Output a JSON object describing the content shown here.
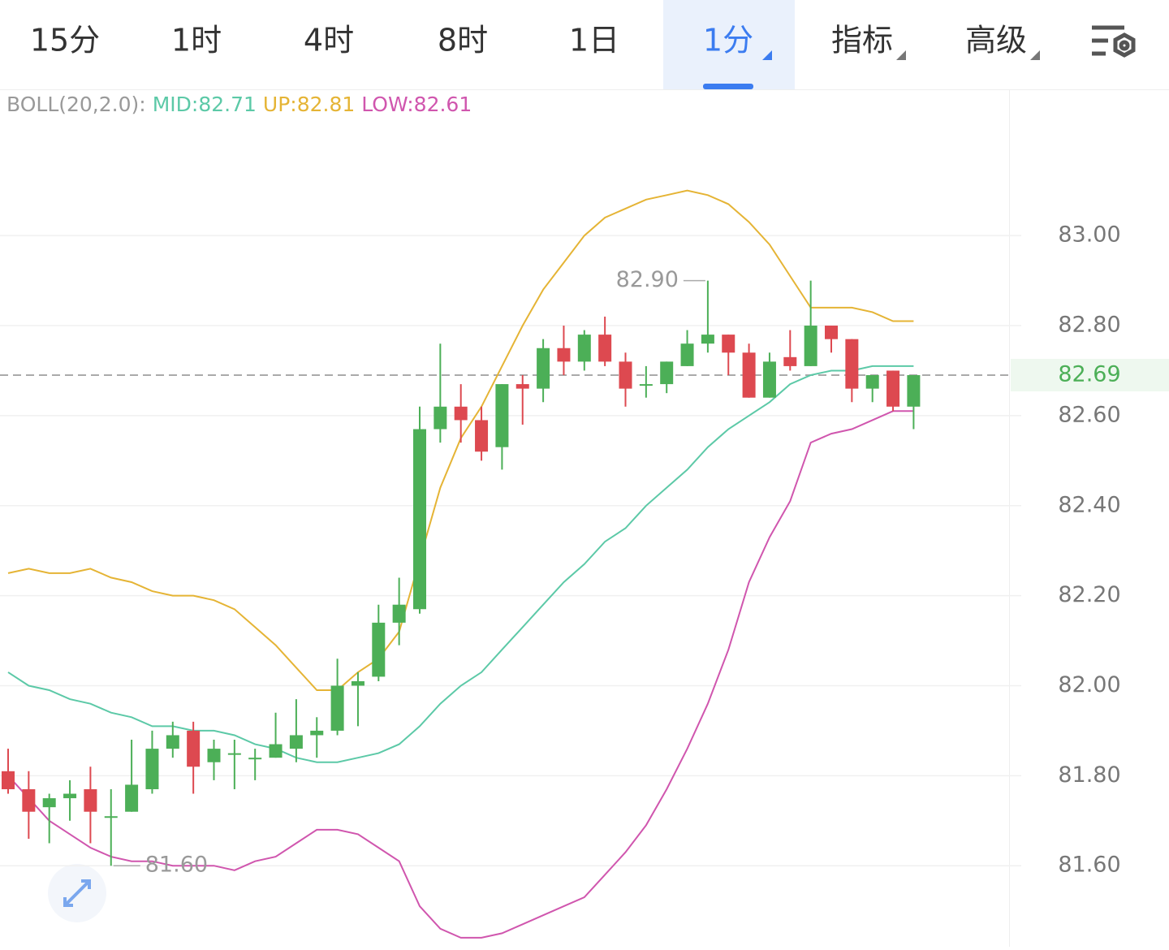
{
  "toolbar": {
    "tabs": [
      {
        "label": "15分",
        "active": false,
        "dropdown": false
      },
      {
        "label": "1时",
        "active": false,
        "dropdown": false
      },
      {
        "label": "4时",
        "active": false,
        "dropdown": false
      },
      {
        "label": "8时",
        "active": false,
        "dropdown": false
      },
      {
        "label": "1日",
        "active": false,
        "dropdown": false
      },
      {
        "label": "1分",
        "active": true,
        "dropdown": true
      },
      {
        "label": "指标",
        "active": false,
        "dropdown": true
      },
      {
        "label": "高级",
        "active": false,
        "dropdown": true
      }
    ]
  },
  "chart_data": {
    "type": "candlestick",
    "indicator": "BOLL(20,2.0):",
    "up_color": "#4caf57",
    "down_color": "#dd4950",
    "open": [
      81.81,
      81.77,
      81.73,
      81.75,
      81.77,
      81.71,
      81.72,
      81.77,
      81.86,
      81.9,
      81.83,
      81.85,
      81.84,
      81.84,
      81.86,
      81.89,
      81.9,
      82.0,
      82.02,
      82.14,
      82.17,
      82.57,
      82.62,
      82.59,
      82.53,
      82.67,
      82.66,
      82.75,
      82.72,
      82.78,
      82.72,
      82.67,
      82.67,
      82.71,
      82.76,
      82.78,
      82.74,
      82.64,
      82.73,
      82.71,
      82.8,
      82.77,
      82.66,
      82.7,
      82.62
    ],
    "high": [
      81.86,
      81.81,
      81.76,
      81.79,
      81.82,
      81.77,
      81.88,
      81.9,
      81.92,
      81.92,
      81.88,
      81.88,
      81.86,
      81.94,
      81.97,
      81.93,
      82.06,
      82.03,
      82.18,
      82.24,
      82.62,
      82.76,
      82.67,
      82.62,
      82.67,
      82.69,
      82.77,
      82.8,
      82.79,
      82.82,
      82.74,
      82.71,
      82.72,
      82.79,
      82.9,
      82.78,
      82.76,
      82.74,
      82.79,
      82.9,
      82.8,
      82.77,
      82.69,
      82.7,
      82.69
    ],
    "low": [
      81.76,
      81.66,
      81.65,
      81.7,
      81.65,
      81.6,
      81.72,
      81.76,
      81.84,
      81.76,
      81.79,
      81.77,
      81.79,
      81.84,
      81.83,
      81.84,
      81.89,
      81.91,
      82.01,
      82.09,
      82.16,
      82.54,
      82.54,
      82.5,
      82.48,
      82.58,
      82.63,
      82.69,
      82.7,
      82.71,
      82.62,
      82.64,
      82.65,
      82.71,
      82.74,
      82.69,
      82.64,
      82.64,
      82.7,
      82.71,
      82.74,
      82.63,
      82.63,
      82.61,
      82.57
    ],
    "close": [
      81.77,
      81.72,
      81.75,
      81.76,
      81.72,
      81.71,
      81.78,
      81.86,
      81.89,
      81.82,
      81.86,
      81.85,
      81.84,
      81.87,
      81.89,
      81.9,
      82.0,
      82.01,
      82.14,
      82.18,
      82.57,
      82.62,
      82.59,
      82.52,
      82.67,
      82.66,
      82.75,
      82.72,
      82.78,
      82.72,
      82.66,
      82.67,
      82.72,
      82.76,
      82.78,
      82.74,
      82.64,
      82.72,
      82.71,
      82.8,
      82.77,
      82.66,
      82.69,
      82.62,
      82.69
    ],
    "series": [
      {
        "name": "MID:82.71",
        "color": "#5cc9a7",
        "values": [
          82.03,
          82.0,
          81.99,
          81.97,
          81.96,
          81.94,
          81.93,
          81.91,
          81.91,
          81.9,
          81.9,
          81.89,
          81.87,
          81.86,
          81.84,
          81.83,
          81.83,
          81.84,
          81.85,
          81.87,
          81.91,
          81.96,
          82.0,
          82.03,
          82.08,
          82.13,
          82.18,
          82.23,
          82.27,
          82.32,
          82.35,
          82.4,
          82.44,
          82.48,
          82.53,
          82.57,
          82.6,
          82.63,
          82.67,
          82.69,
          82.7,
          82.7,
          82.71,
          82.71,
          82.71
        ]
      },
      {
        "name": "UP:82.81",
        "color": "#e5b435",
        "values": [
          82.25,
          82.26,
          82.25,
          82.25,
          82.26,
          82.24,
          82.23,
          82.21,
          82.2,
          82.2,
          82.19,
          82.17,
          82.13,
          82.09,
          82.04,
          81.99,
          81.99,
          82.03,
          82.06,
          82.12,
          82.28,
          82.44,
          82.55,
          82.62,
          82.71,
          82.8,
          82.88,
          82.94,
          83.0,
          83.04,
          83.06,
          83.08,
          83.09,
          83.1,
          83.09,
          83.07,
          83.03,
          82.98,
          82.91,
          82.84,
          82.84,
          82.84,
          82.83,
          82.81,
          82.81
        ]
      },
      {
        "name": "LOW:82.61",
        "color": "#d056ae",
        "values": [
          81.8,
          81.75,
          81.7,
          81.67,
          81.64,
          81.62,
          81.61,
          81.61,
          81.6,
          81.6,
          81.6,
          81.59,
          81.61,
          81.62,
          81.65,
          81.68,
          81.68,
          81.67,
          81.64,
          81.61,
          81.51,
          81.46,
          81.44,
          81.44,
          81.45,
          81.47,
          81.49,
          81.51,
          81.53,
          81.58,
          81.63,
          81.69,
          81.77,
          81.86,
          81.96,
          82.08,
          82.23,
          82.33,
          82.41,
          82.54,
          82.56,
          82.57,
          82.59,
          82.61,
          82.61
        ]
      }
    ],
    "ylim": [
      81.42,
      83.325
    ],
    "yticks": [
      {
        "value": 83,
        "label": "83.00"
      },
      {
        "value": 82.8,
        "label": "82.80"
      },
      {
        "value": 82.6,
        "label": "82.60"
      },
      {
        "value": 82.4,
        "label": "82.40"
      },
      {
        "value": 82.2,
        "label": "82.20"
      },
      {
        "value": 82,
        "label": "82.00"
      },
      {
        "value": 81.8,
        "label": "81.80"
      },
      {
        "value": 81.6,
        "label": "81.60"
      }
    ],
    "grid": true,
    "last_price": 82.69,
    "max_marker": {
      "value": 82.9,
      "label": "82.90"
    },
    "min_marker": {
      "value": 81.6,
      "label": "81.60"
    }
  }
}
